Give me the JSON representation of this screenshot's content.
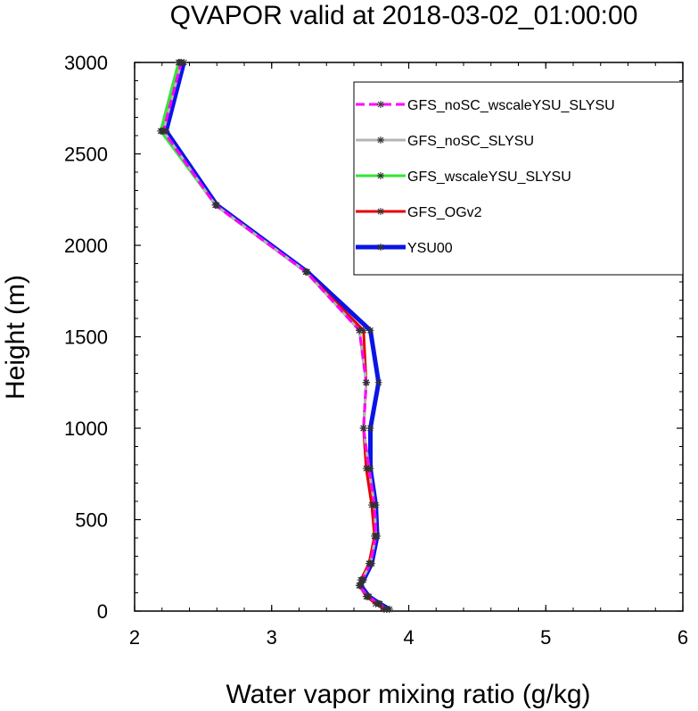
{
  "chart_data": {
    "type": "line",
    "title": "QVAPOR valid at 2018-03-02_01:00:00",
    "xlabel": "Water vapor mixing ratio (g/kg)",
    "ylabel": "Height (m)",
    "xlim": [
      2,
      6
    ],
    "ylim": [
      0,
      3000
    ],
    "xticks": [
      2,
      3,
      4,
      5,
      6
    ],
    "yticks": [
      0,
      500,
      1000,
      1500,
      2000,
      2500,
      3000
    ],
    "grid": false,
    "legend_position": "top-right",
    "series": [
      {
        "name": "GFS_noSC_wscaleYSU_SLYSU",
        "color": "#ff00ff",
        "dashed": true,
        "width": 3,
        "x": [
          3.84,
          3.78,
          3.7,
          3.64,
          3.66,
          3.72,
          3.76,
          3.75,
          3.71,
          3.67,
          3.69,
          3.64,
          3.25,
          2.59,
          2.21,
          2.34
        ],
        "y": [
          10,
          40,
          80,
          140,
          170,
          260,
          410,
          580,
          780,
          1000,
          1250,
          1535,
          1855,
          2220,
          2625,
          3000
        ]
      },
      {
        "name": "GFS_noSC_SLYSU",
        "color": "#b4b4b4",
        "dashed": false,
        "width": 3,
        "x": [
          3.84,
          3.78,
          3.7,
          3.64,
          3.66,
          3.72,
          3.76,
          3.75,
          3.71,
          3.67,
          3.69,
          3.64,
          3.25,
          2.59,
          2.21,
          2.34
        ],
        "y": [
          10,
          40,
          80,
          140,
          170,
          260,
          410,
          580,
          780,
          1000,
          1250,
          1535,
          1855,
          2220,
          2625,
          3000
        ]
      },
      {
        "name": "GFS_wscaleYSU_SLYSU",
        "color": "#32e632",
        "dashed": false,
        "width": 3,
        "x": [
          3.84,
          3.78,
          3.7,
          3.64,
          3.66,
          3.72,
          3.76,
          3.75,
          3.71,
          3.67,
          3.69,
          3.64,
          3.25,
          2.59,
          2.19,
          2.32
        ],
        "y": [
          10,
          40,
          80,
          140,
          170,
          260,
          410,
          580,
          780,
          1000,
          1250,
          1535,
          1855,
          2220,
          2625,
          3000
        ]
      },
      {
        "name": "GFS_OGv2",
        "color": "#e60000",
        "dashed": false,
        "width": 3,
        "x": [
          3.82,
          3.76,
          3.69,
          3.64,
          3.65,
          3.71,
          3.75,
          3.73,
          3.69,
          3.67,
          3.69,
          3.67,
          3.25,
          2.59,
          2.2,
          2.33
        ],
        "y": [
          10,
          40,
          80,
          140,
          170,
          260,
          410,
          580,
          780,
          1000,
          1250,
          1535,
          1855,
          2220,
          2625,
          3000
        ]
      },
      {
        "name": "YSU00",
        "color": "#0a14e6",
        "dashed": false,
        "width": 5,
        "x": [
          3.86,
          3.79,
          3.71,
          3.65,
          3.67,
          3.73,
          3.77,
          3.76,
          3.72,
          3.72,
          3.78,
          3.72,
          3.26,
          2.6,
          2.23,
          2.36
        ],
        "y": [
          10,
          40,
          80,
          140,
          170,
          260,
          410,
          580,
          780,
          1000,
          1250,
          1535,
          1855,
          2220,
          2625,
          3000
        ]
      }
    ]
  }
}
